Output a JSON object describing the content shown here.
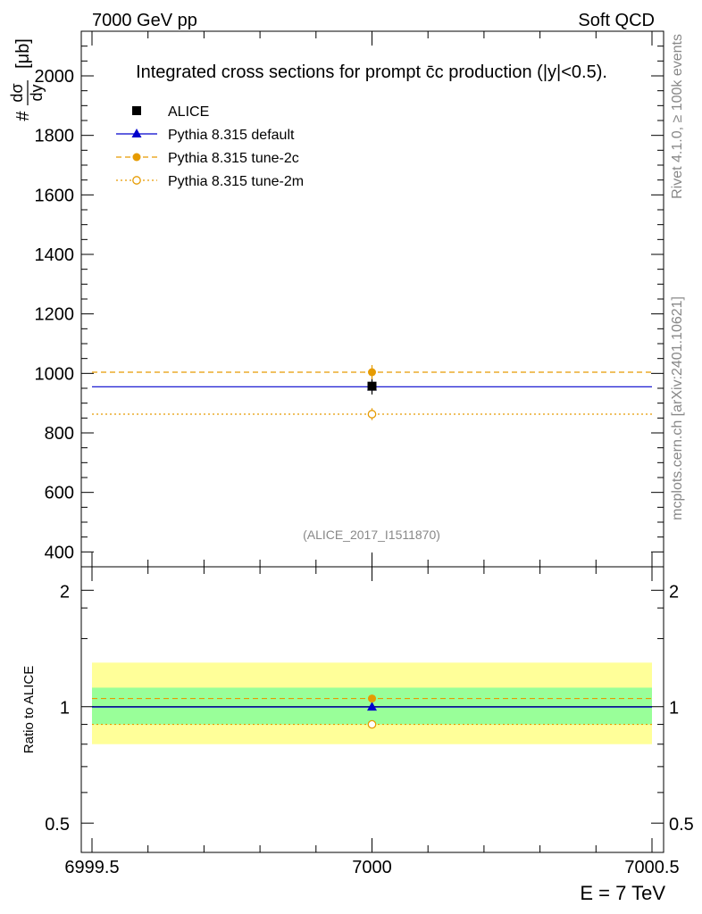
{
  "header": {
    "left": "7000 GeV pp",
    "right": "Soft QCD"
  },
  "side": {
    "rivet": "Rivet 4.1.0, ≥ 100k events",
    "mcplots": "mcplots.cern.ch [arXiv:2401.10621]"
  },
  "colors": {
    "alice": "#000000",
    "default": "#0000cc",
    "tune2c": "#e69b00",
    "tune2m": "#e69b00",
    "band_stat": "#99ff99",
    "band_total": "#ffff99"
  },
  "chart_data": [
    {
      "type": "scatter",
      "title": "Integrated cross sections for prompt c̄c production (|y|<0.5).",
      "ylabel": "#dσ/dy [μb]",
      "ylabel_parts": {
        "hash": "#",
        "num": "dσ",
        "den": "dy",
        "unit": "[μb]"
      },
      "xlim": [
        6999.5,
        7000.5
      ],
      "ylim": [
        350,
        2150
      ],
      "yticks": [
        400,
        600,
        800,
        1000,
        1200,
        1400,
        1600,
        1800,
        2000
      ],
      "ytick_labels": [
        "400",
        "600",
        "800",
        "1000",
        "1200",
        "1400",
        "1600",
        "1800",
        "2000"
      ],
      "watermark": "(ALICE_2017_I1511870)",
      "legend_position": "top-left",
      "series": [
        {
          "name": "ALICE",
          "key": "alice",
          "marker": "square",
          "line": "none",
          "x": [
            7000
          ],
          "y": [
            957
          ],
          "err": [
            28
          ]
        },
        {
          "name": "Pythia 8.315 default",
          "key": "default",
          "marker": "triangle",
          "line": "solid",
          "x": [
            7000
          ],
          "y": [
            955
          ],
          "err": [
            13
          ]
        },
        {
          "name": "Pythia 8.315 tune-2c",
          "key": "tune2c",
          "marker": "circle",
          "line": "dashed",
          "x": [
            7000
          ],
          "y": [
            1004
          ],
          "err": [
            24
          ]
        },
        {
          "name": "Pythia 8.315 tune-2m",
          "key": "tune2m",
          "marker": "open-circle",
          "line": "dotted",
          "x": [
            7000
          ],
          "y": [
            863
          ],
          "err": [
            20
          ]
        }
      ]
    },
    {
      "type": "scatter",
      "ylabel": "Ratio to ALICE",
      "xlabel": "E = 7 TeV",
      "xlim": [
        6999.5,
        7000.5
      ],
      "ylim": [
        0.42,
        2.3
      ],
      "yscale": "log",
      "yticks": [
        0.5,
        1,
        2
      ],
      "ytick_labels": [
        "0.5",
        "1",
        "2"
      ],
      "xticks": [
        6999.5,
        7000,
        7000.5
      ],
      "xtick_labels": [
        "6999.5",
        "7000",
        "7000.5"
      ],
      "band_stat": [
        0.9,
        1.12
      ],
      "band_total": [
        0.8,
        1.3
      ],
      "series": [
        {
          "name": "Pythia 8.315 default",
          "key": "default",
          "marker": "triangle",
          "line": "solid",
          "x": [
            7000
          ],
          "y": [
            0.998
          ]
        },
        {
          "name": "Pythia 8.315 tune-2c",
          "key": "tune2c",
          "marker": "circle",
          "line": "dashed",
          "x": [
            7000
          ],
          "y": [
            1.05
          ]
        },
        {
          "name": "Pythia 8.315 tune-2m",
          "key": "tune2m",
          "marker": "open-circle",
          "line": "dotted",
          "x": [
            7000
          ],
          "y": [
            0.9
          ]
        }
      ]
    }
  ]
}
